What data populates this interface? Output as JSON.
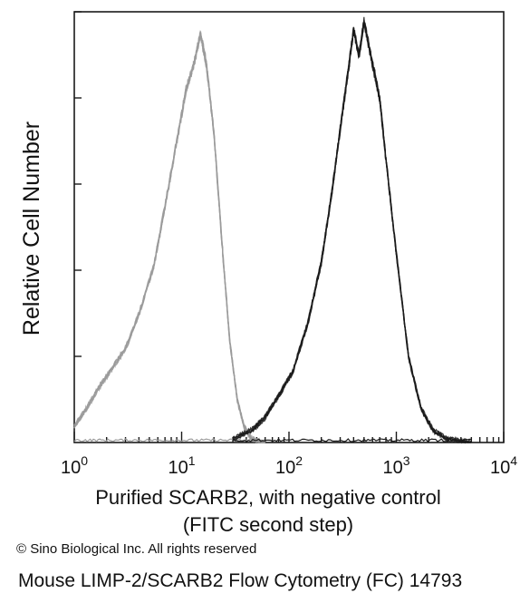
{
  "chart_data": {
    "type": "area",
    "title": "",
    "ylabel": "Relative Cell Number",
    "xlabel_line1": "Purified SCARB2, with negative control",
    "xlabel_line2": "(FITC second step)",
    "x_scale": "log",
    "xlim": [
      1,
      10000
    ],
    "ylim": [
      0,
      100
    ],
    "grid": false,
    "x_ticks": [
      {
        "value": 1,
        "base": "10",
        "exp": "0"
      },
      {
        "value": 10,
        "base": "10",
        "exp": "1"
      },
      {
        "value": 100,
        "base": "10",
        "exp": "2"
      },
      {
        "value": 1000,
        "base": "10",
        "exp": "3"
      },
      {
        "value": 10000,
        "base": "10",
        "exp": "4"
      }
    ],
    "series": [
      {
        "color": "#9a9a9a",
        "x": [
          1,
          1.3,
          1.7,
          2.2,
          3,
          4,
          5.5,
          7,
          9,
          11,
          13,
          15,
          17,
          20,
          24,
          28,
          33,
          38,
          45,
          60
        ],
        "y": [
          4,
          8,
          13,
          17,
          22,
          30,
          41,
          55,
          70,
          82,
          88,
          95,
          88,
          72,
          45,
          24,
          10,
          4,
          1,
          0
        ]
      },
      {
        "color": "#1a1a1a",
        "x": [
          30,
          45,
          60,
          80,
          110,
          150,
          200,
          250,
          300,
          350,
          400,
          450,
          500,
          600,
          700,
          800,
          1000,
          1300,
          1700,
          2200,
          3000,
          4000,
          5000
        ],
        "y": [
          1,
          3,
          6,
          11,
          17,
          28,
          42,
          58,
          73,
          85,
          96,
          90,
          98,
          88,
          80,
          66,
          44,
          20,
          8,
          3,
          1,
          0.5,
          0
        ]
      }
    ]
  },
  "footer": {
    "copyright": "© Sino Biological Inc. All rights reserved",
    "caption": "Mouse LIMP-2/SCARB2 Flow Cytometry (FC) 14793"
  }
}
